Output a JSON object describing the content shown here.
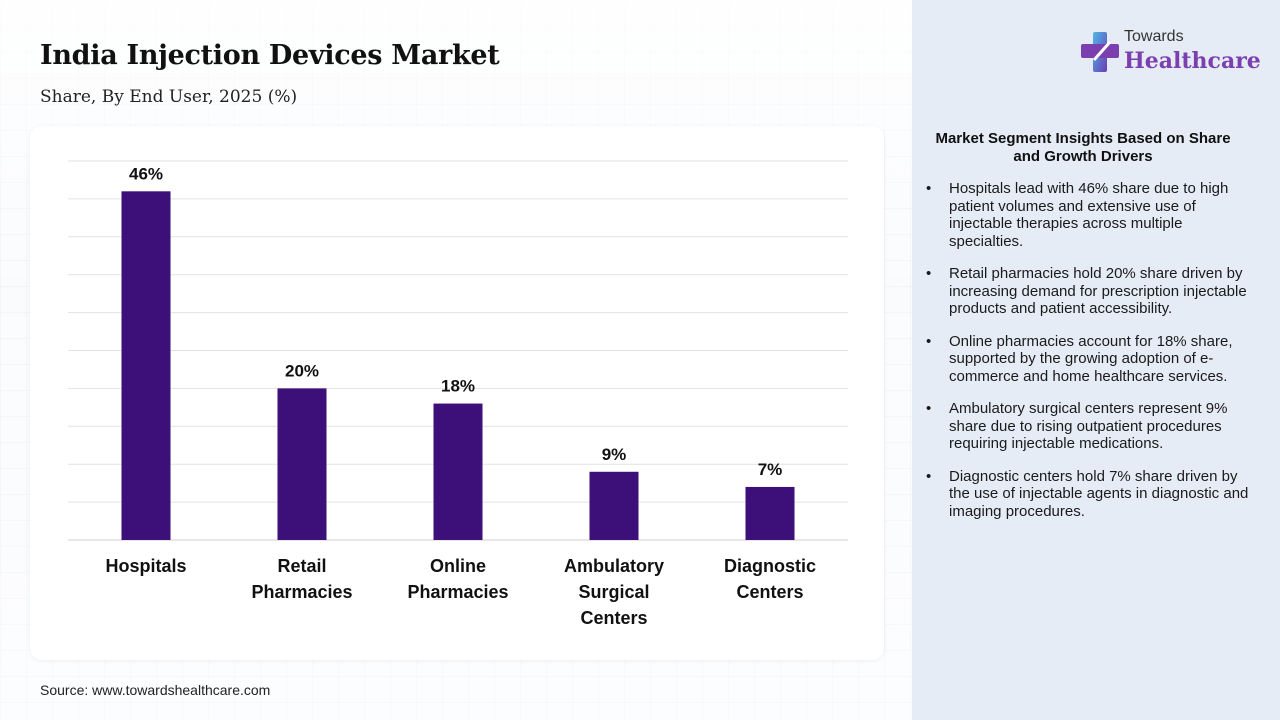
{
  "title": "India Injection Devices Market",
  "subtitle": "Share, By End User, 2025 (%)",
  "source": "Source: www.towardshealthcare.com",
  "logo": {
    "line1": "Towards",
    "line2": "Healthcare",
    "icon": "medical-cross-icon"
  },
  "colors": {
    "bar": "#3d0f78",
    "brand": "#7b3fb0",
    "panel": "#e6ecf6"
  },
  "insights": {
    "title": "Market Segment Insights Based on Share and Growth Drivers",
    "items": [
      "Hospitals lead with 46% share due to high patient volumes and extensive use of injectable therapies across multiple specialties.",
      "Retail pharmacies hold 20% share driven by increasing demand for prescription injectable products and patient accessibility.",
      "Online pharmacies account for 18% share, supported by the growing adoption of e-commerce and home healthcare services.",
      "Ambulatory surgical centers represent 9% share due to rising outpatient procedures requiring injectable medications.",
      "Diagnostic centers hold 7% share driven by the use of injectable agents in diagnostic and imaging procedures."
    ]
  },
  "chart_data": {
    "type": "bar",
    "categories": [
      [
        "Hospitals"
      ],
      [
        "Retail",
        "Pharmacies"
      ],
      [
        "Online",
        "Pharmacies"
      ],
      [
        "Ambulatory",
        "Surgical",
        "Centers"
      ],
      [
        "Diagnostic",
        "Centers"
      ]
    ],
    "values": [
      46,
      20,
      18,
      9,
      7
    ],
    "data_labels": [
      "46%",
      "20%",
      "18%",
      "9%",
      "7%"
    ],
    "ylim": [
      0,
      50
    ],
    "grid": true,
    "xlabel": "",
    "ylabel": ""
  }
}
